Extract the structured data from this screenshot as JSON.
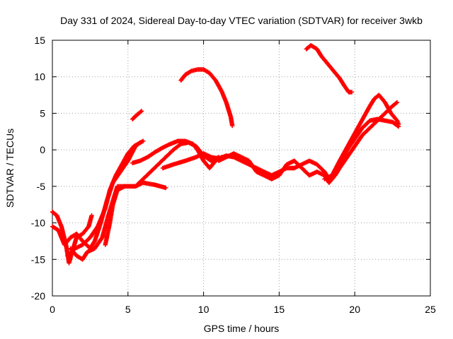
{
  "chart_data": {
    "type": "scatter",
    "title": "Day 331 of 2024, Sidereal Day-to-day VTEC variation (SDTVAR) for receiver 3wkb",
    "xlabel": "GPS time / hours",
    "ylabel": "SDTVAR / TECUs",
    "xlim": [
      0,
      25
    ],
    "ylim": [
      -20,
      15
    ],
    "x_ticks": [
      0,
      5,
      10,
      15,
      20,
      25
    ],
    "y_ticks": [
      -20,
      -15,
      -10,
      -5,
      0,
      5,
      10,
      15
    ],
    "grid": true,
    "marker": "plus",
    "color": "#ff0000",
    "series": [
      {
        "name": "arc-1",
        "points": [
          [
            0.0,
            -8.5
          ],
          [
            0.3,
            -9.0
          ],
          [
            0.6,
            -10.5
          ],
          [
            0.9,
            -13.0
          ],
          [
            1.1,
            -15.5
          ],
          [
            1.3,
            -14.0
          ],
          [
            1.6,
            -12.0
          ],
          [
            2.0,
            -11.5
          ],
          [
            2.4,
            -10.5
          ],
          [
            2.6,
            -9.0
          ]
        ]
      },
      {
        "name": "arc-2",
        "points": [
          [
            0.0,
            -10.5
          ],
          [
            0.4,
            -11.0
          ],
          [
            0.8,
            -13.0
          ],
          [
            1.2,
            -12.0
          ],
          [
            1.6,
            -11.5
          ],
          [
            2.0,
            -12.5
          ],
          [
            2.5,
            -13.5
          ],
          [
            2.8,
            -12.5
          ],
          [
            3.2,
            -10.0
          ],
          [
            3.6,
            -7.0
          ],
          [
            4.0,
            -4.5
          ],
          [
            4.5,
            -3.0
          ],
          [
            5.0,
            -1.5
          ],
          [
            5.5,
            0.5
          ],
          [
            5.8,
            1.0
          ]
        ]
      },
      {
        "name": "arc-3",
        "points": [
          [
            1.0,
            -14.5
          ],
          [
            1.5,
            -13.5
          ],
          [
            2.0,
            -13.0
          ],
          [
            2.5,
            -12.0
          ],
          [
            3.0,
            -10.5
          ],
          [
            3.5,
            -8.0
          ],
          [
            3.8,
            -5.5
          ],
          [
            4.2,
            -3.5
          ],
          [
            4.6,
            -2.0
          ],
          [
            5.0,
            -0.5
          ],
          [
            5.4,
            0.5
          ],
          [
            6.0,
            1.2
          ]
        ]
      },
      {
        "name": "arc-4",
        "points": [
          [
            1.2,
            -13.5
          ],
          [
            1.6,
            -14.5
          ],
          [
            2.0,
            -15.0
          ],
          [
            2.3,
            -14.0
          ],
          [
            2.8,
            -13.5
          ],
          [
            3.3,
            -12.0
          ],
          [
            3.7,
            -9.0
          ],
          [
            4.0,
            -7.0
          ],
          [
            4.3,
            -5.0
          ],
          [
            5.0,
            -5.0
          ],
          [
            5.5,
            -5.0
          ],
          [
            6.0,
            -4.5
          ],
          [
            6.8,
            -4.8
          ],
          [
            7.5,
            -5.2
          ]
        ]
      },
      {
        "name": "arc-5",
        "points": [
          [
            3.5,
            -13.0
          ],
          [
            3.8,
            -10.0
          ],
          [
            4.0,
            -7.5
          ],
          [
            4.3,
            -5.5
          ],
          [
            4.8,
            -5.0
          ],
          [
            5.5,
            -5.0
          ],
          [
            6.0,
            -4.0
          ],
          [
            6.5,
            -3.0
          ],
          [
            7.0,
            -2.0
          ],
          [
            7.5,
            -1.0
          ],
          [
            8.0,
            0.0
          ],
          [
            8.5,
            0.8
          ],
          [
            9.0,
            1.0
          ],
          [
            9.5,
            0.5
          ],
          [
            10.0,
            -0.8
          ],
          [
            10.5,
            -1.5
          ],
          [
            11.0,
            -1.0
          ]
        ]
      },
      {
        "name": "arc-6",
        "points": [
          [
            5.3,
            -1.8
          ],
          [
            5.8,
            -1.5
          ],
          [
            6.3,
            -1.0
          ],
          [
            6.8,
            -0.3
          ],
          [
            7.3,
            0.3
          ],
          [
            7.8,
            0.8
          ],
          [
            8.3,
            1.2
          ],
          [
            8.8,
            1.2
          ],
          [
            9.3,
            0.8
          ],
          [
            9.6,
            0.0
          ],
          [
            10.0,
            -1.5
          ],
          [
            10.4,
            -2.5
          ],
          [
            10.8,
            -1.5
          ],
          [
            11.2,
            -1.0
          ]
        ]
      },
      {
        "name": "arc-7",
        "points": [
          [
            7.3,
            -2.5
          ],
          [
            8.0,
            -2.0
          ],
          [
            8.8,
            -1.5
          ],
          [
            9.5,
            -1.0
          ],
          [
            10.0,
            -0.5
          ],
          [
            10.5,
            -1.0
          ],
          [
            11.0,
            -1.2
          ],
          [
            11.5,
            -0.8
          ],
          [
            12.0,
            -1.0
          ],
          [
            12.5,
            -1.5
          ],
          [
            13.0,
            -2.0
          ],
          [
            13.5,
            -2.5
          ],
          [
            14.0,
            -3.0
          ],
          [
            14.5,
            -3.5
          ],
          [
            15.0,
            -3.0
          ],
          [
            15.5,
            -2.5
          ],
          [
            16.0,
            -2.5
          ],
          [
            16.5,
            -2.0
          ],
          [
            17.0,
            -1.5
          ],
          [
            17.5,
            -2.0
          ],
          [
            18.0,
            -3.0
          ],
          [
            18.3,
            -4.0
          ]
        ]
      },
      {
        "name": "arc-8",
        "points": [
          [
            11.0,
            -1.5
          ],
          [
            11.5,
            -1.0
          ],
          [
            12.0,
            -0.5
          ],
          [
            12.5,
            -1.0
          ],
          [
            13.0,
            -1.5
          ],
          [
            13.5,
            -3.0
          ],
          [
            14.0,
            -3.5
          ],
          [
            14.5,
            -4.0
          ],
          [
            15.0,
            -3.5
          ],
          [
            15.5,
            -2.0
          ],
          [
            16.0,
            -1.5
          ],
          [
            16.5,
            -2.5
          ],
          [
            17.0,
            -3.5
          ],
          [
            17.5,
            -3.0
          ],
          [
            18.0,
            -3.5
          ],
          [
            18.3,
            -4.5
          ],
          [
            18.7,
            -3.5
          ],
          [
            19.0,
            -2.5
          ],
          [
            19.5,
            -1.0
          ],
          [
            20.0,
            0.5
          ],
          [
            20.5,
            2.0
          ],
          [
            21.0,
            3.0
          ],
          [
            21.5,
            4.0
          ],
          [
            22.0,
            5.0
          ],
          [
            22.5,
            6.0
          ],
          [
            22.8,
            6.5
          ]
        ]
      },
      {
        "name": "arc-9",
        "points": [
          [
            18.0,
            -4.0
          ],
          [
            18.5,
            -3.5
          ],
          [
            19.0,
            -1.5
          ],
          [
            19.4,
            0.0
          ],
          [
            19.8,
            1.5
          ],
          [
            20.2,
            3.0
          ],
          [
            20.6,
            4.5
          ],
          [
            21.0,
            6.0
          ],
          [
            21.3,
            7.0
          ],
          [
            21.6,
            7.5
          ],
          [
            22.0,
            6.5
          ],
          [
            22.4,
            5.0
          ],
          [
            22.8,
            4.0
          ],
          [
            22.9,
            3.5
          ]
        ]
      },
      {
        "name": "arc-10",
        "points": [
          [
            18.5,
            -4.0
          ],
          [
            19.0,
            -2.0
          ],
          [
            19.5,
            0.0
          ],
          [
            20.0,
            1.5
          ],
          [
            20.5,
            3.0
          ],
          [
            21.0,
            4.0
          ],
          [
            21.5,
            4.2
          ],
          [
            22.0,
            4.0
          ],
          [
            22.5,
            3.8
          ],
          [
            22.9,
            3.2
          ]
        ]
      },
      {
        "name": "arc-11",
        "points": [
          [
            5.3,
            4.2
          ],
          [
            5.6,
            4.8
          ],
          [
            5.9,
            5.3
          ]
        ]
      },
      {
        "name": "arc-12",
        "points": [
          [
            8.5,
            9.5
          ],
          [
            8.8,
            10.3
          ],
          [
            9.2,
            10.8
          ],
          [
            9.6,
            11.0
          ],
          [
            10.0,
            11.0
          ],
          [
            10.4,
            10.5
          ],
          [
            10.8,
            9.5
          ],
          [
            11.2,
            8.0
          ],
          [
            11.5,
            6.5
          ],
          [
            11.8,
            4.5
          ],
          [
            11.9,
            3.3
          ]
        ]
      },
      {
        "name": "arc-13",
        "points": [
          [
            16.8,
            13.8
          ],
          [
            17.1,
            14.3
          ],
          [
            17.5,
            13.8
          ],
          [
            17.8,
            12.8
          ],
          [
            18.2,
            11.8
          ],
          [
            18.6,
            10.8
          ],
          [
            19.0,
            9.8
          ],
          [
            19.3,
            8.8
          ],
          [
            19.6,
            7.9
          ],
          [
            19.8,
            7.9
          ]
        ]
      }
    ]
  }
}
